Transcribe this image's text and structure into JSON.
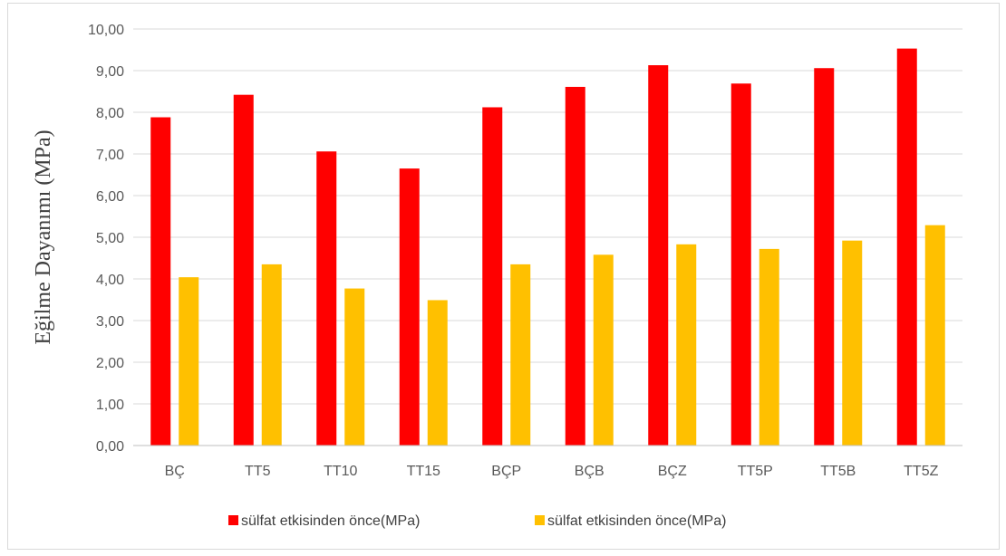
{
  "chart_data": {
    "type": "bar",
    "title": "",
    "xlabel": "",
    "ylabel": "Eğilme Dayanımı (MPa)",
    "ylim": [
      0,
      10
    ],
    "ytick_step": 1,
    "ytick_labels": [
      "0,00",
      "1,00",
      "2,00",
      "3,00",
      "4,00",
      "5,00",
      "6,00",
      "7,00",
      "8,00",
      "9,00",
      "10,00"
    ],
    "grid": true,
    "legend_position": "bottom",
    "categories": [
      "BÇ",
      "TT5",
      "TT10",
      "TT15",
      "BÇP",
      "BÇB",
      "BÇZ",
      "TT5P",
      "TT5B",
      "TT5Z"
    ],
    "series": [
      {
        "name": "sülfat etkisinden önce(MPa)",
        "color": "#ff0000",
        "values": [
          7.88,
          8.42,
          7.06,
          6.65,
          8.12,
          8.61,
          9.13,
          8.69,
          9.06,
          9.53
        ]
      },
      {
        "name": "sülfat etkisinden önce(MPa)",
        "color": "#ffc000",
        "values": [
          4.04,
          4.35,
          3.77,
          3.49,
          4.35,
          4.58,
          4.83,
          4.72,
          4.92,
          5.29
        ]
      }
    ]
  }
}
